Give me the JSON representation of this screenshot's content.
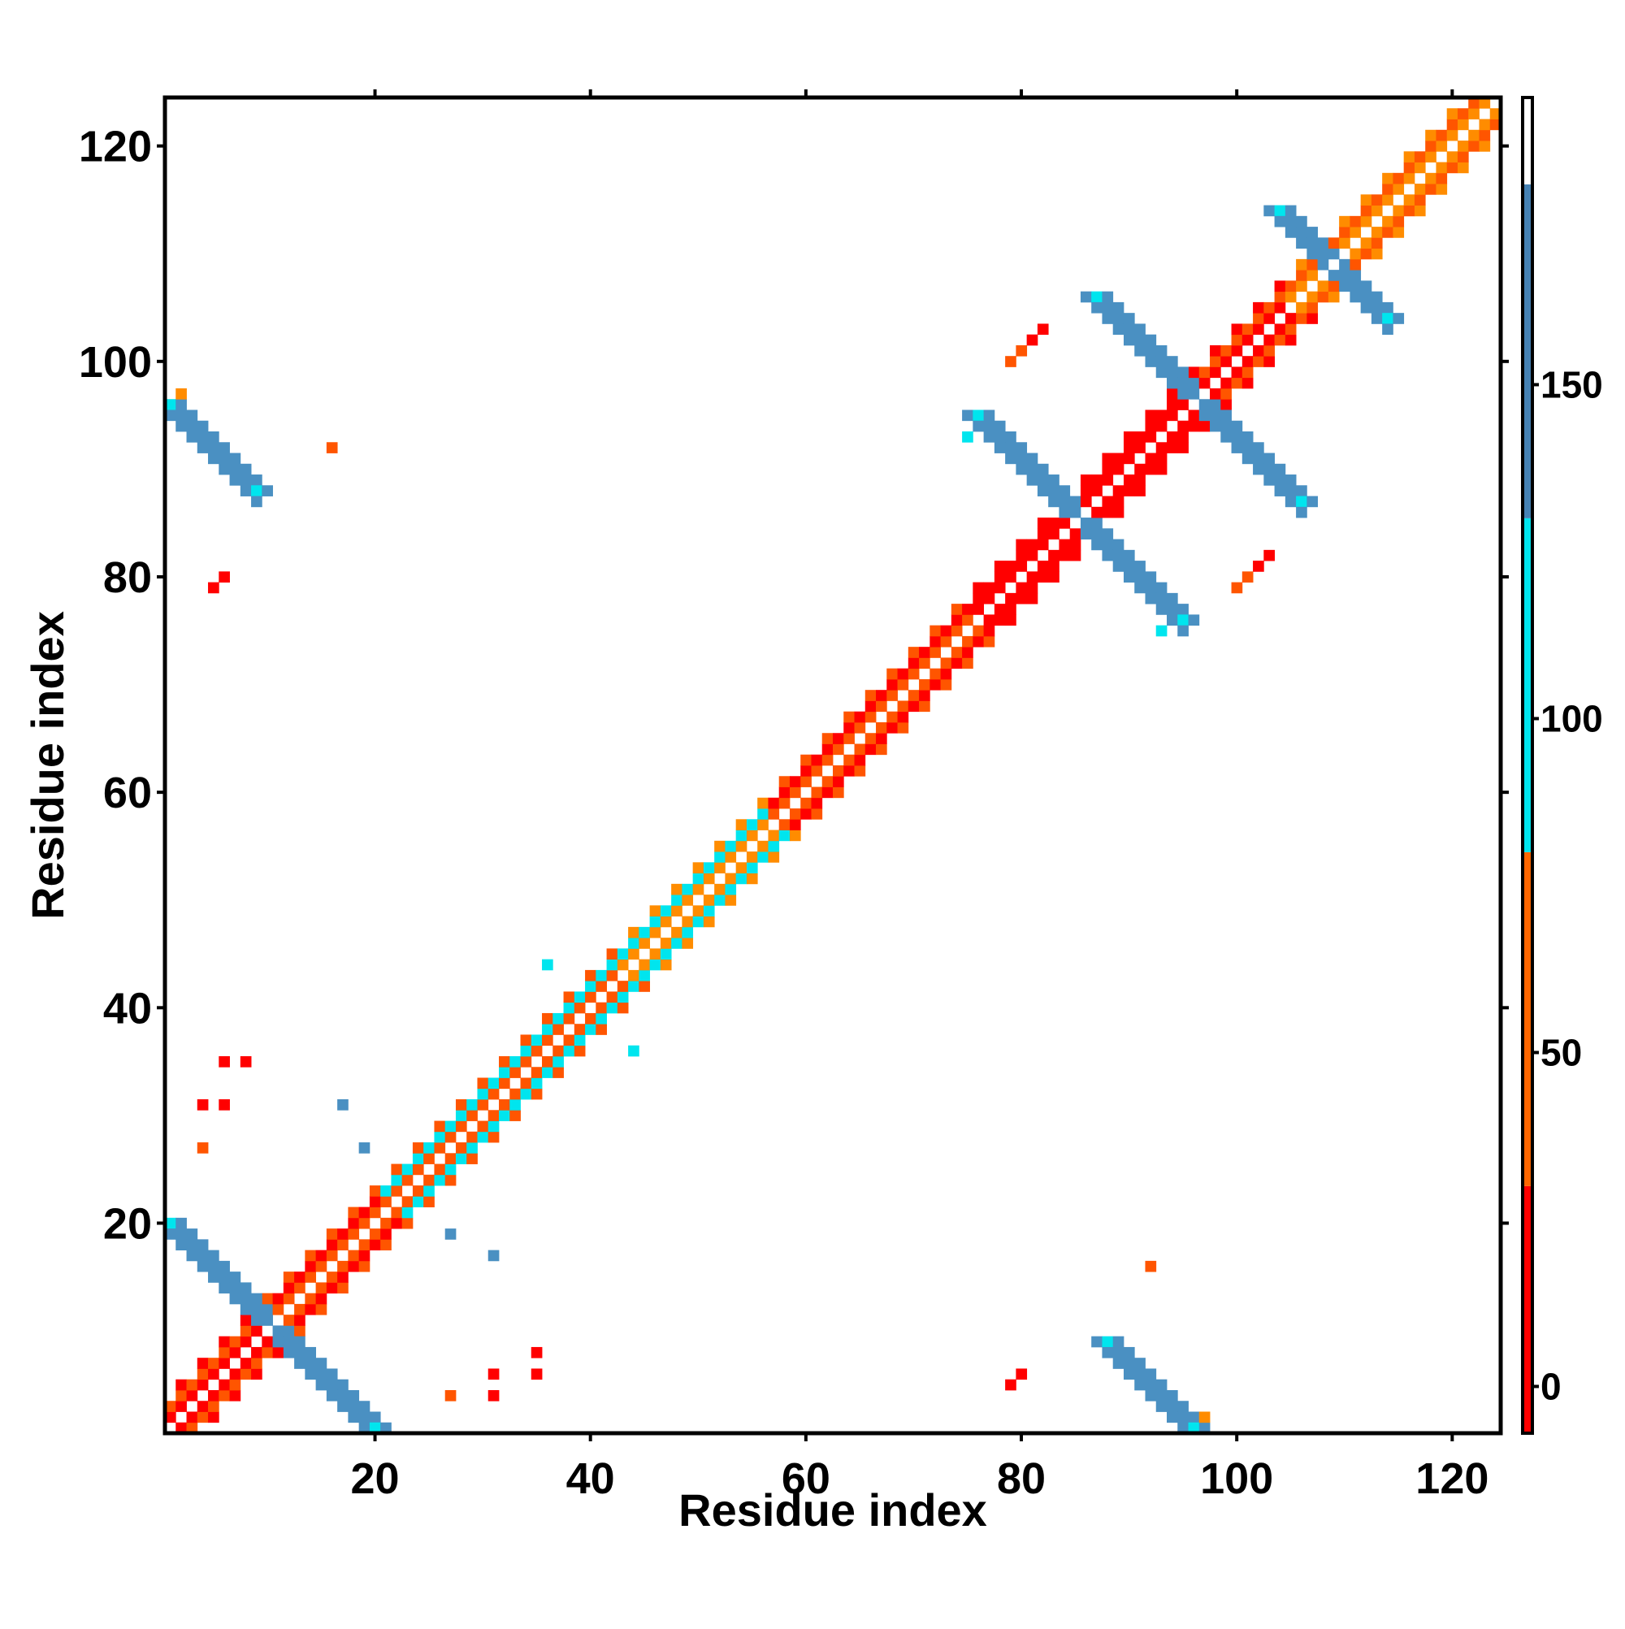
{
  "chart_data": {
    "type": "heatmap",
    "title": "",
    "xlabel": "Residue index",
    "ylabel": "Residue index",
    "xlim": [
      1,
      124
    ],
    "ylim": [
      1,
      124
    ],
    "x_ticks": [
      20,
      40,
      60,
      80,
      100,
      120
    ],
    "y_ticks": [
      20,
      40,
      60,
      80,
      100,
      120
    ],
    "grid": false,
    "colorbar": {
      "ticks": [
        0,
        50,
        100,
        150
      ],
      "range": [
        -7,
        193
      ],
      "bands": [
        {
          "from": -7,
          "to": 30,
          "color": "#ff0000"
        },
        {
          "from": 30,
          "to": 80,
          "color": "#ff6600"
        },
        {
          "from": 80,
          "to": 130,
          "color": "#00e5ee"
        },
        {
          "from": 130,
          "to": 180,
          "color": "#4682b4"
        },
        {
          "from": 180,
          "to": 193,
          "color": "#ffffff"
        }
      ]
    },
    "colors": {
      "red": "#ff0000",
      "orange": "#ff8c00",
      "dark_orange": "#ff5500",
      "cyan": "#00e5ee",
      "steel_blue": "#4a90c2"
    },
    "diagonal_segments": [
      {
        "from": 1,
        "to": 9,
        "near": "red",
        "far": "dark_orange"
      },
      {
        "from": 10,
        "to": 20,
        "near": "dark_orange",
        "far": "red"
      },
      {
        "from": 21,
        "to": 42,
        "near": "dark_orange",
        "far": "cyan"
      },
      {
        "from": 43,
        "to": 56,
        "near": "orange",
        "far": "cyan"
      },
      {
        "from": 57,
        "to": 75,
        "near": "dark_orange",
        "far": "red"
      },
      {
        "from": 76,
        "to": 84,
        "near": "red",
        "far": "red"
      },
      {
        "from": 85,
        "to": 96,
        "near": "red",
        "far": "red"
      },
      {
        "from": 97,
        "to": 104,
        "near": "red",
        "far": "dark_orange"
      },
      {
        "from": 105,
        "to": 124,
        "near": "orange",
        "far": "dark_orange"
      }
    ],
    "antidiagonal_bands": [
      {
        "from": [
          1,
          20
        ],
        "to": [
          20,
          1
        ],
        "color": "steel_blue"
      },
      {
        "from": [
          76,
          95
        ],
        "to": [
          95,
          76
        ],
        "color": "steel_blue"
      },
      {
        "from": [
          87,
          106
        ],
        "to": [
          106,
          87
        ],
        "color": "steel_blue"
      },
      {
        "from": [
          104,
          114
        ],
        "to": [
          114,
          104
        ],
        "color": "steel_blue"
      },
      {
        "from": [
          1,
          96
        ],
        "to": [
          9,
          88
        ],
        "color": "steel_blue"
      },
      {
        "from": [
          88,
          9
        ],
        "to": [
          96,
          1
        ],
        "color": "steel_blue"
      }
    ],
    "scattered_cells": [
      {
        "x": 2,
        "y": 97,
        "color": "orange"
      },
      {
        "x": 16,
        "y": 92,
        "color": "dark_orange"
      },
      {
        "x": 6,
        "y": 80,
        "color": "red"
      },
      {
        "x": 5,
        "y": 79,
        "color": "red"
      },
      {
        "x": 6,
        "y": 35,
        "color": "red"
      },
      {
        "x": 8,
        "y": 35,
        "color": "red"
      },
      {
        "x": 4,
        "y": 31,
        "color": "red"
      },
      {
        "x": 6,
        "y": 31,
        "color": "red"
      },
      {
        "x": 4,
        "y": 27,
        "color": "dark_orange"
      },
      {
        "x": 17,
        "y": 31,
        "color": "steel_blue"
      },
      {
        "x": 19,
        "y": 27,
        "color": "steel_blue"
      },
      {
        "x": 27,
        "y": 19,
        "color": "steel_blue"
      },
      {
        "x": 31,
        "y": 17,
        "color": "steel_blue"
      },
      {
        "x": 35,
        "y": 8,
        "color": "red"
      },
      {
        "x": 31,
        "y": 6,
        "color": "red"
      },
      {
        "x": 35,
        "y": 6,
        "color": "red"
      },
      {
        "x": 27,
        "y": 4,
        "color": "dark_orange"
      },
      {
        "x": 31,
        "y": 4,
        "color": "red"
      },
      {
        "x": 80,
        "y": 6,
        "color": "red"
      },
      {
        "x": 79,
        "y": 5,
        "color": "red"
      },
      {
        "x": 92,
        "y": 16,
        "color": "dark_orange"
      },
      {
        "x": 97,
        "y": 2,
        "color": "orange"
      },
      {
        "x": 79,
        "y": 100,
        "color": "dark_orange"
      },
      {
        "x": 80,
        "y": 101,
        "color": "dark_orange"
      },
      {
        "x": 81,
        "y": 102,
        "color": "red"
      },
      {
        "x": 82,
        "y": 103,
        "color": "red"
      },
      {
        "x": 100,
        "y": 79,
        "color": "dark_orange"
      },
      {
        "x": 101,
        "y": 80,
        "color": "dark_orange"
      },
      {
        "x": 102,
        "y": 81,
        "color": "red"
      },
      {
        "x": 103,
        "y": 82,
        "color": "red"
      },
      {
        "x": 75,
        "y": 93,
        "color": "cyan"
      },
      {
        "x": 93,
        "y": 75,
        "color": "cyan"
      },
      {
        "x": 36,
        "y": 44,
        "color": "cyan"
      },
      {
        "x": 44,
        "y": 36,
        "color": "cyan"
      }
    ]
  }
}
